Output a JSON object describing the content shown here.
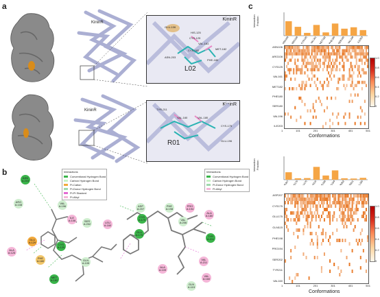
{
  "panels": {
    "a": {
      "letter": "a",
      "top": {
        "protein_label": "KininR",
        "inset_title": "KininR",
        "ligand": "L02",
        "residues": [
          "GLU-106",
          "HIS-125",
          "CYS-125",
          "VAL-161",
          "MET-182",
          "CYS-182",
          "ASN-203",
          "PHE-180"
        ]
      },
      "bottom": {
        "protein_label": "KininR",
        "inset_title": "KininR",
        "ligand": "R01",
        "residues": [
          "TYR-211",
          "VAL-160",
          "VAL-180",
          "CYS-175",
          "GLU-196"
        ]
      }
    },
    "b": {
      "letter": "b",
      "legend_left": {
        "title": "Interactions",
        "items": [
          {
            "label": "Conventional Hydrogen Bond",
            "color": "#3ab54a"
          },
          {
            "label": "Carbon Hydrogen Bond",
            "color": "#c7f2c5"
          },
          {
            "label": "Pi-Cation",
            "color": "#f2a93b"
          },
          {
            "label": "Pi-Donor Hydrogen Bond",
            "color": "#9fd9ad"
          },
          {
            "label": "Pi-Pi Stacked",
            "color": "#e468d2"
          },
          {
            "label": "Pi-Alkyl",
            "color": "#f5b6d8"
          }
        ]
      },
      "legend_right": {
        "title": "Interactions",
        "items": [
          {
            "label": "Conventional Hydrogen Bond",
            "color": "#3ab54a"
          },
          {
            "label": "Carbon Hydrogen Bond",
            "color": "#c7f2c5"
          },
          {
            "label": "Pi-Donor Hydrogen Bond",
            "color": "#9fd9ad"
          },
          {
            "label": "Pi-Alkyl",
            "color": "#f5b6d8"
          }
        ]
      },
      "left_residues": [
        {
          "label": "ASN A:203",
          "color": "#3ab54a"
        },
        {
          "label": "ARG A:108",
          "color": "#cfeecf"
        },
        {
          "label": "VAL A:196",
          "color": "#cfeecf"
        },
        {
          "label": "ILE A:106",
          "color": "#f5b6d8"
        },
        {
          "label": "SER A:202",
          "color": "#cfeecf"
        },
        {
          "label": "LEU A:160",
          "color": "#f5b6d8"
        },
        {
          "label": "GLU A:129",
          "color": "#f2a93b"
        },
        {
          "label": "CYS A:125",
          "color": "#3ab54a"
        },
        {
          "label": "ALA A:125",
          "color": "#f5b6d8"
        },
        {
          "label": "PHE A:180",
          "color": "#f2c76a"
        },
        {
          "label": "MET A:182",
          "color": "#3ab54a"
        },
        {
          "label": "GLN A:105",
          "color": "#cfeecf"
        }
      ],
      "right_residues": [
        {
          "label": "ASP A:207",
          "color": "#cfeecf"
        },
        {
          "label": "PHE A:198",
          "color": "#cfeecf"
        },
        {
          "label": "PRO A:194",
          "color": "#f5b6d8"
        },
        {
          "label": "VAL A:206",
          "color": "#cfeecf"
        },
        {
          "label": "ALA A:180",
          "color": "#f5b6d8"
        },
        {
          "label": "CYS A:175",
          "color": "#3ab54a"
        },
        {
          "label": "GLU A:175",
          "color": "#3ab54a"
        },
        {
          "label": "TYR A:211",
          "color": "#3ab54a"
        },
        {
          "label": "VAL A:211",
          "color": "#f5b6d8"
        },
        {
          "label": "VAL A:160",
          "color": "#f5b6d8"
        },
        {
          "label": "ALA A:109",
          "color": "#f5b6d8"
        },
        {
          "label": "GLN A:115",
          "color": "#cfeecf"
        }
      ]
    },
    "c": {
      "letter": "c"
    }
  },
  "chart_data": [
    {
      "type": "bar",
      "ylabel": "Interaction Fraction",
      "ylim": [
        0,
        1
      ],
      "categories": [
        "ASN106",
        "ARG108",
        "CYS125",
        "VAL161",
        "MET182",
        "PHE180",
        "SER180",
        "VAL196",
        "ILE203"
      ],
      "values": [
        0.62,
        0.38,
        0.12,
        0.46,
        0.14,
        0.52,
        0.3,
        0.36,
        0.24
      ],
      "color": "#f5a545"
    },
    {
      "type": "heatmap",
      "xlabel": "Conformations",
      "x_ticks": [
        "1",
        "101",
        "201",
        "301",
        "401",
        "501"
      ],
      "colorbar_ticks": [
        "1.0",
        "0.8",
        "0.6",
        "0.4",
        "0.2",
        "0"
      ],
      "color": "#e8741e"
    },
    {
      "type": "bar",
      "ylabel": "Interaction Fraction",
      "ylim": [
        0,
        1
      ],
      "categories": [
        "ASP207",
        "CYS175",
        "GLU175",
        "GLN115",
        "PHE198",
        "PRO194",
        "SER202",
        "TYR211",
        "VAL160"
      ],
      "values": [
        0.32,
        0.06,
        0.07,
        0.55,
        0.18,
        0.4,
        0.06,
        0.05,
        0.08
      ],
      "color": "#f5a545"
    },
    {
      "type": "heatmap",
      "xlabel": "Conformations",
      "x_ticks": [
        "1",
        "101",
        "201",
        "301",
        "401",
        "501"
      ],
      "colorbar_ticks": [
        "1.0",
        "0.8",
        "0.6",
        "0.4",
        "0.2",
        "0"
      ],
      "color": "#e8741e"
    }
  ]
}
